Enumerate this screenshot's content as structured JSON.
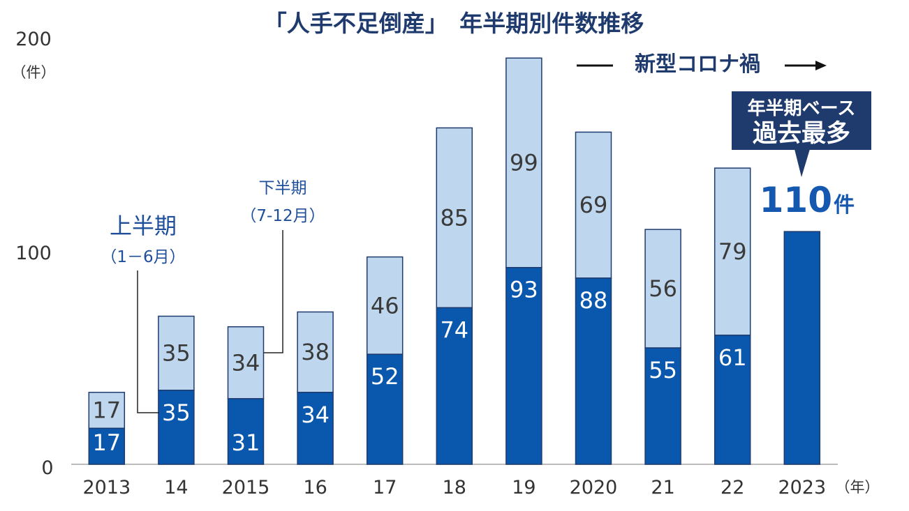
{
  "colors": {
    "first_half": "#0a58ad",
    "second_half": "#bed7ee",
    "bar_outline": "#1f3b6e",
    "callout_bg": "#1f3b6e",
    "accent_value": "#1558b0"
  },
  "annotations": {
    "unit_label": "（件）",
    "first_half_label": "上半期",
    "first_half_range": "（1－6月）",
    "second_half_label": "下半期",
    "second_half_range": "（7-12月）",
    "corona_label": "新型コロナ禍",
    "callout_line1": "年半期ベース",
    "callout_line2": "過去最多",
    "highlight_value": "110",
    "highlight_unit": "件",
    "x_unit": "（年）"
  },
  "chart_data": {
    "type": "bar",
    "stacked": true,
    "title": "「人手不足倒産」　年半期別件数推移",
    "xlabel": "（年）",
    "ylabel": "（件）",
    "ylim": [
      0,
      200
    ],
    "yticks": [
      "0",
      "100",
      "200"
    ],
    "categories": [
      "2013",
      "14",
      "2015",
      "16",
      "17",
      "18",
      "19",
      "2020",
      "21",
      "22",
      "2023"
    ],
    "series": [
      {
        "name": "上半期（1－6月）",
        "values": [
          17,
          35,
          31,
          34,
          52,
          74,
          93,
          88,
          55,
          61,
          110
        ]
      },
      {
        "name": "下半期（7-12月）",
        "values": [
          17,
          35,
          34,
          38,
          46,
          85,
          99,
          69,
          56,
          79,
          null
        ]
      }
    ],
    "data_labels": {
      "first_half": [
        "17",
        "35",
        "31",
        "34",
        "52",
        "74",
        "93",
        "88",
        "55",
        "61",
        ""
      ],
      "second_half": [
        "17",
        "35",
        "34",
        "38",
        "46",
        "85",
        "99",
        "69",
        "56",
        "79",
        ""
      ]
    }
  }
}
